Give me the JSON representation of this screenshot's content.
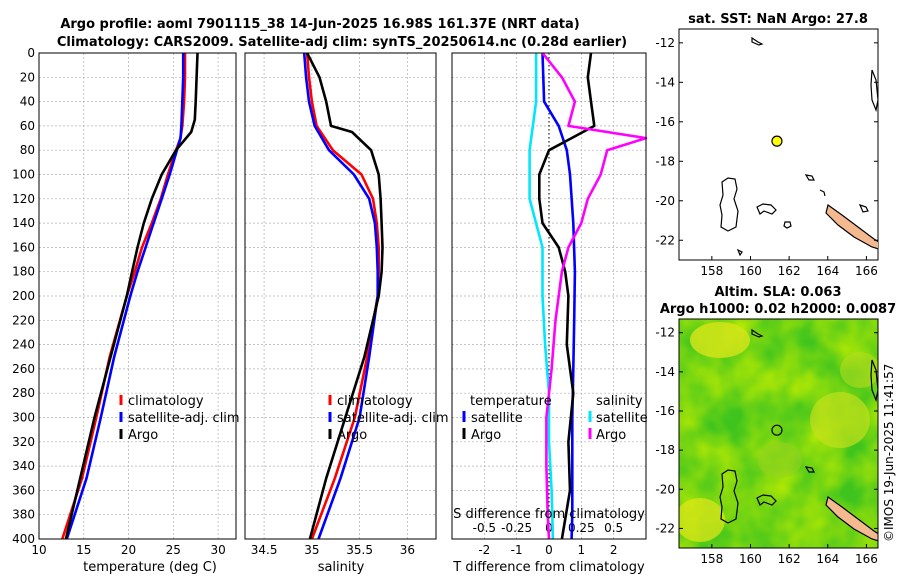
{
  "titles": {
    "line1": "Argo profile: aoml 7901115_38 14-Jun-2025 16.98S 161.37E (NRT data)",
    "line2": "Climatology: CARS2009. Satellite-adj clim: synTS_20250614.nc (0.28d earlier)",
    "sst_map": "sat. SST: NaN Argo: 27.8",
    "sla_map_line1": "Altim. SLA: 0.063",
    "sla_map_line2": "Argo h1000: 0.02 h2000: 0.0087"
  },
  "watermark": "©IMOS 19-Jun-2025 11:41:57",
  "colors": {
    "climatology": "#ff0000",
    "satellite": "#0000ff",
    "argo": "#000000",
    "satellite_s": "#00ffff",
    "argo_s": "#ff00ff",
    "land": "#f4b98f",
    "float": "#ffff00"
  },
  "chart_data": [
    {
      "type": "line",
      "name": "temperature-profile",
      "xlabel": "temperature (deg C)",
      "ylabel": "",
      "xlim": [
        10,
        32
      ],
      "ylim": [
        0,
        400
      ],
      "x_ticks": [
        10,
        15,
        20,
        25,
        30
      ],
      "y_ticks": [
        0,
        20,
        40,
        60,
        80,
        100,
        120,
        140,
        160,
        180,
        200,
        220,
        240,
        260,
        280,
        300,
        320,
        340,
        360,
        380,
        400
      ],
      "y_reversed": true,
      "legend": [
        "climatology",
        "satellite-adj. clim",
        "Argo"
      ],
      "legend_position": "center-right",
      "series": [
        {
          "name": "climatology",
          "color": "red",
          "depth": [
            0,
            20,
            40,
            60,
            70,
            80,
            100,
            120,
            140,
            160,
            180,
            200,
            250,
            300,
            350,
            400
          ],
          "values": [
            26.3,
            26.3,
            26.2,
            26.0,
            25.8,
            25.3,
            24.4,
            23.6,
            22.6,
            21.5,
            20.7,
            19.8,
            17.9,
            16.4,
            14.8,
            12.6
          ]
        },
        {
          "name": "satellite-adj. clim",
          "color": "blue",
          "depth": [
            0,
            20,
            40,
            60,
            70,
            80,
            100,
            120,
            140,
            160,
            180,
            200,
            250,
            300,
            350,
            400
          ],
          "values": [
            26.1,
            26.1,
            26.0,
            25.9,
            25.8,
            25.4,
            24.6,
            23.7,
            22.8,
            21.9,
            21.0,
            20.2,
            18.4,
            16.9,
            15.3,
            13.1
          ]
        },
        {
          "name": "Argo",
          "color": "black",
          "depth": [
            0,
            20,
            40,
            55,
            65,
            80,
            100,
            120,
            140,
            160,
            180,
            200,
            250,
            300,
            350,
            400
          ],
          "values": [
            27.7,
            27.6,
            27.5,
            27.4,
            27.0,
            25.3,
            23.7,
            22.6,
            21.7,
            21.0,
            20.4,
            19.8,
            18.0,
            16.2,
            14.6,
            13.0
          ]
        }
      ]
    },
    {
      "type": "line",
      "name": "salinity-profile",
      "xlabel": "salinity",
      "xlim": [
        34.3,
        36.3
      ],
      "ylim": [
        0,
        400
      ],
      "x_ticks": [
        34.5,
        35,
        35.5,
        36
      ],
      "x_tick_labels": [
        "34.5",
        "35",
        "35.5",
        "36"
      ],
      "y_reversed": true,
      "legend": [
        "climatology",
        "satellite-adj. clim",
        "Argo"
      ],
      "legend_position": "center-right",
      "series": [
        {
          "name": "climatology",
          "color": "red",
          "depth": [
            0,
            20,
            40,
            60,
            80,
            100,
            120,
            140,
            160,
            180,
            200,
            250,
            300,
            350,
            400
          ],
          "values": [
            34.95,
            34.97,
            35.0,
            35.05,
            35.22,
            35.52,
            35.64,
            35.68,
            35.7,
            35.7,
            35.69,
            35.58,
            35.45,
            35.24,
            35.0
          ]
        },
        {
          "name": "satellite-adj. clim",
          "color": "blue",
          "depth": [
            0,
            20,
            40,
            60,
            80,
            100,
            120,
            140,
            160,
            180,
            200,
            250,
            300,
            350,
            400
          ],
          "values": [
            34.92,
            34.94,
            34.97,
            35.03,
            35.18,
            35.44,
            35.6,
            35.66,
            35.68,
            35.69,
            35.69,
            35.6,
            35.5,
            35.3,
            35.07
          ]
        },
        {
          "name": "Argo",
          "color": "black",
          "depth": [
            0,
            20,
            40,
            60,
            65,
            80,
            100,
            120,
            140,
            160,
            180,
            200,
            250,
            300,
            350,
            400
          ],
          "values": [
            34.95,
            35.08,
            35.15,
            35.2,
            35.42,
            35.62,
            35.7,
            35.72,
            35.73,
            35.74,
            35.73,
            35.7,
            35.55,
            35.35,
            35.15,
            34.98
          ]
        }
      ]
    },
    {
      "type": "line",
      "name": "difference-profile",
      "xlabel": "T difference from climatology",
      "secondary_xlabel": "S difference from climatology",
      "xlim": [
        -3,
        3
      ],
      "ylim": [
        0,
        400
      ],
      "x_ticks": [
        -2,
        -1,
        0,
        1,
        2
      ],
      "x_tick_labels": [
        "-2",
        "-1",
        "0",
        "1",
        "2"
      ],
      "secondary_x_ticks": [
        -0.5,
        -0.25,
        0,
        0.25,
        0.5
      ],
      "secondary_x_tick_labels": [
        "-0.5",
        "-0.25",
        "0",
        "0.25",
        "0.5"
      ],
      "y_reversed": true,
      "legend_temperature": {
        "title": "temperature",
        "items": [
          "satellite",
          "Argo"
        ]
      },
      "legend_salinity": {
        "title": "salinity",
        "items": [
          "satellite",
          "Argo"
        ]
      },
      "series": [
        {
          "name": "temperature satellite",
          "color": "blue",
          "depth": [
            0,
            40,
            60,
            80,
            100,
            140,
            180,
            220,
            260,
            300,
            340,
            380,
            400
          ],
          "values": [
            -0.2,
            -0.15,
            0.3,
            0.55,
            0.65,
            0.75,
            0.8,
            0.78,
            0.75,
            0.72,
            0.72,
            0.72,
            0.7
          ]
        },
        {
          "name": "temperature Argo",
          "color": "black",
          "depth": [
            0,
            20,
            40,
            60,
            70,
            80,
            100,
            120,
            140,
            160,
            180,
            200,
            240,
            280,
            320,
            360,
            400
          ],
          "values": [
            1.3,
            1.2,
            1.3,
            1.4,
            0.7,
            0.0,
            -0.3,
            -0.3,
            -0.2,
            0.3,
            0.5,
            0.6,
            0.55,
            0.75,
            0.6,
            0.65,
            0.4
          ]
        },
        {
          "name": "salinity satellite",
          "color": "cyan",
          "depth": [
            0,
            40,
            80,
            120,
            160,
            200,
            240,
            280,
            320,
            360,
            400
          ],
          "values": [
            -0.1,
            -0.1,
            -0.15,
            -0.15,
            -0.05,
            -0.05,
            -0.03,
            0.0,
            0.0,
            0.02,
            0.03
          ]
        },
        {
          "name": "salinity Argo",
          "color": "magenta",
          "depth": [
            0,
            20,
            40,
            60,
            70,
            80,
            100,
            120,
            140,
            160,
            180,
            220,
            260,
            300,
            340,
            380,
            400
          ],
          "values": [
            -0.05,
            0.1,
            0.2,
            0.15,
            0.75,
            0.45,
            0.4,
            0.3,
            0.25,
            0.15,
            0.1,
            0.05,
            0.02,
            -0.02,
            -0.02,
            -0.01,
            0.0
          ]
        }
      ]
    },
    {
      "type": "map",
      "name": "sst-map",
      "x_ticks": [
        158,
        160,
        162,
        164,
        166
      ],
      "y_ticks": [
        -12,
        -14,
        -16,
        -18,
        -20,
        -22
      ],
      "xlim": [
        156.3,
        166.6
      ],
      "ylim": [
        -23.0,
        -11.3
      ],
      "float_position": [
        161.37,
        -16.98
      ]
    },
    {
      "type": "map",
      "name": "sla-map",
      "x_ticks": [
        158,
        160,
        162,
        164,
        166
      ],
      "y_ticks": [
        -12,
        -14,
        -16,
        -18,
        -20,
        -22
      ],
      "xlim": [
        156.3,
        166.6
      ],
      "ylim": [
        -23.0,
        -11.3
      ],
      "float_position": [
        161.37,
        -16.98
      ]
    }
  ]
}
